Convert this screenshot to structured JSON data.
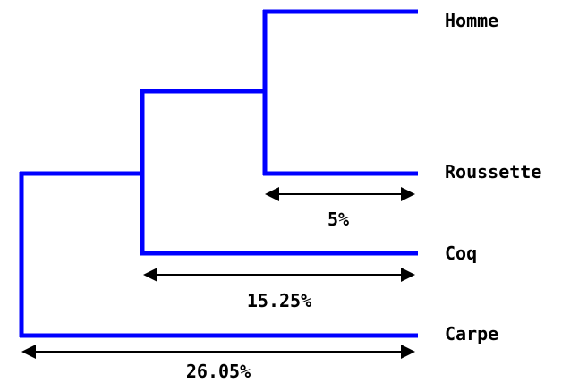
{
  "taxa": {
    "homme": "Homme",
    "roussette": "Roussette",
    "coq": "Coq",
    "carpe": "Carpe"
  },
  "distances": {
    "homme_roussette": "5%",
    "mammals_coq": "15.25%",
    "all_carpe": "26.05%"
  },
  "colors": {
    "branch": "#0000ff",
    "scale": "#000000"
  }
}
